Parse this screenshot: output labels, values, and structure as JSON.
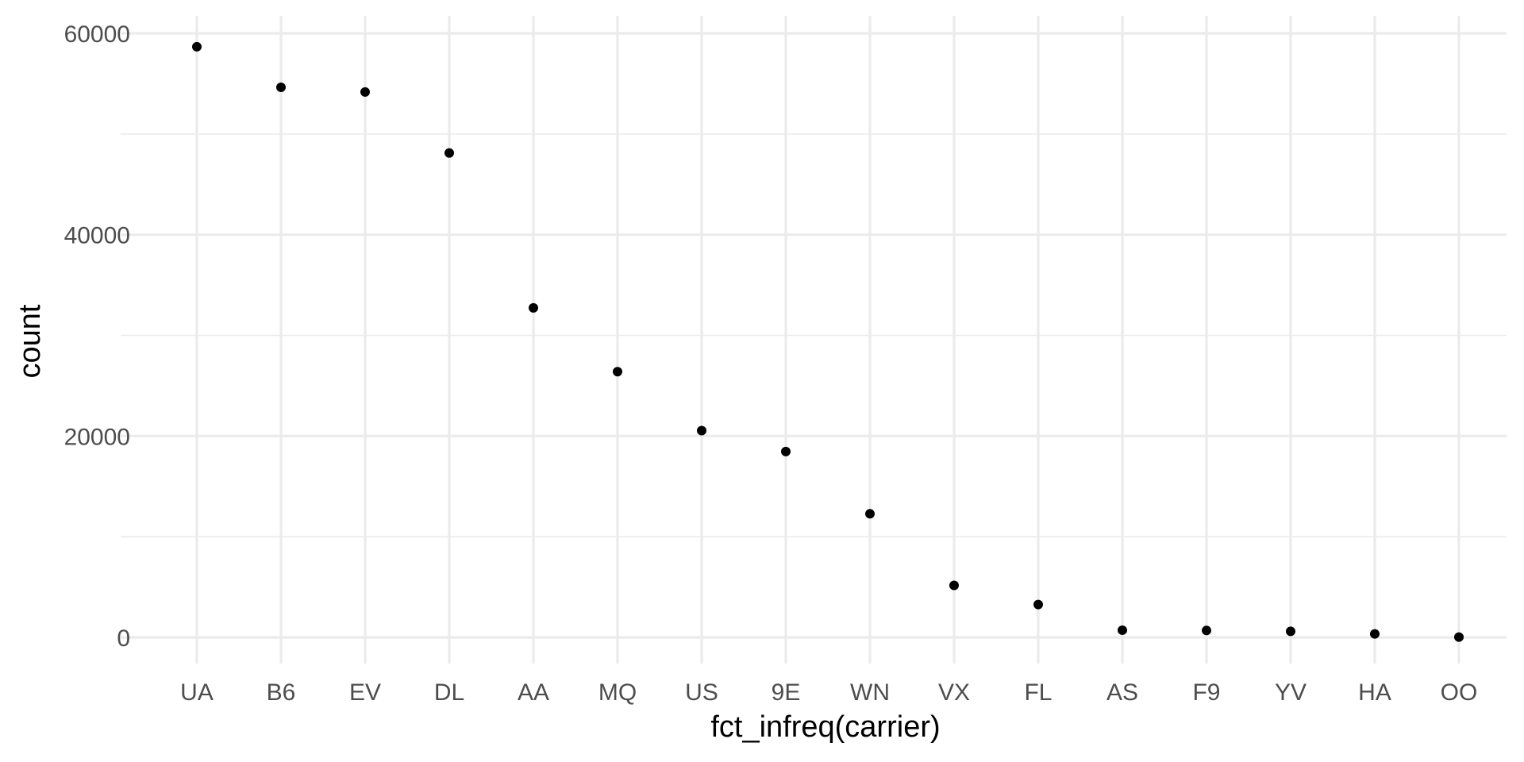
{
  "chart_data": {
    "type": "scatter",
    "title": "",
    "xlabel": "fct_infreq(carrier)",
    "ylabel": "count",
    "categories": [
      "UA",
      "B6",
      "EV",
      "DL",
      "AA",
      "MQ",
      "US",
      "9E",
      "WN",
      "VX",
      "FL",
      "AS",
      "F9",
      "YV",
      "HA",
      "OO"
    ],
    "values": [
      58665,
      54635,
      54173,
      48110,
      32729,
      26397,
      20536,
      18460,
      12275,
      5162,
      3260,
      714,
      685,
      601,
      342,
      32
    ],
    "ylim": [
      -2900,
      61500
    ],
    "yticks": [
      0,
      20000,
      40000,
      60000
    ],
    "ytick_labels": [
      "0",
      "20000",
      "40000",
      "60000"
    ],
    "y_minor_ticks": [
      10000,
      30000,
      50000
    ],
    "grid": true,
    "point_color": "#000000",
    "grid_color": "#ebebeb"
  }
}
